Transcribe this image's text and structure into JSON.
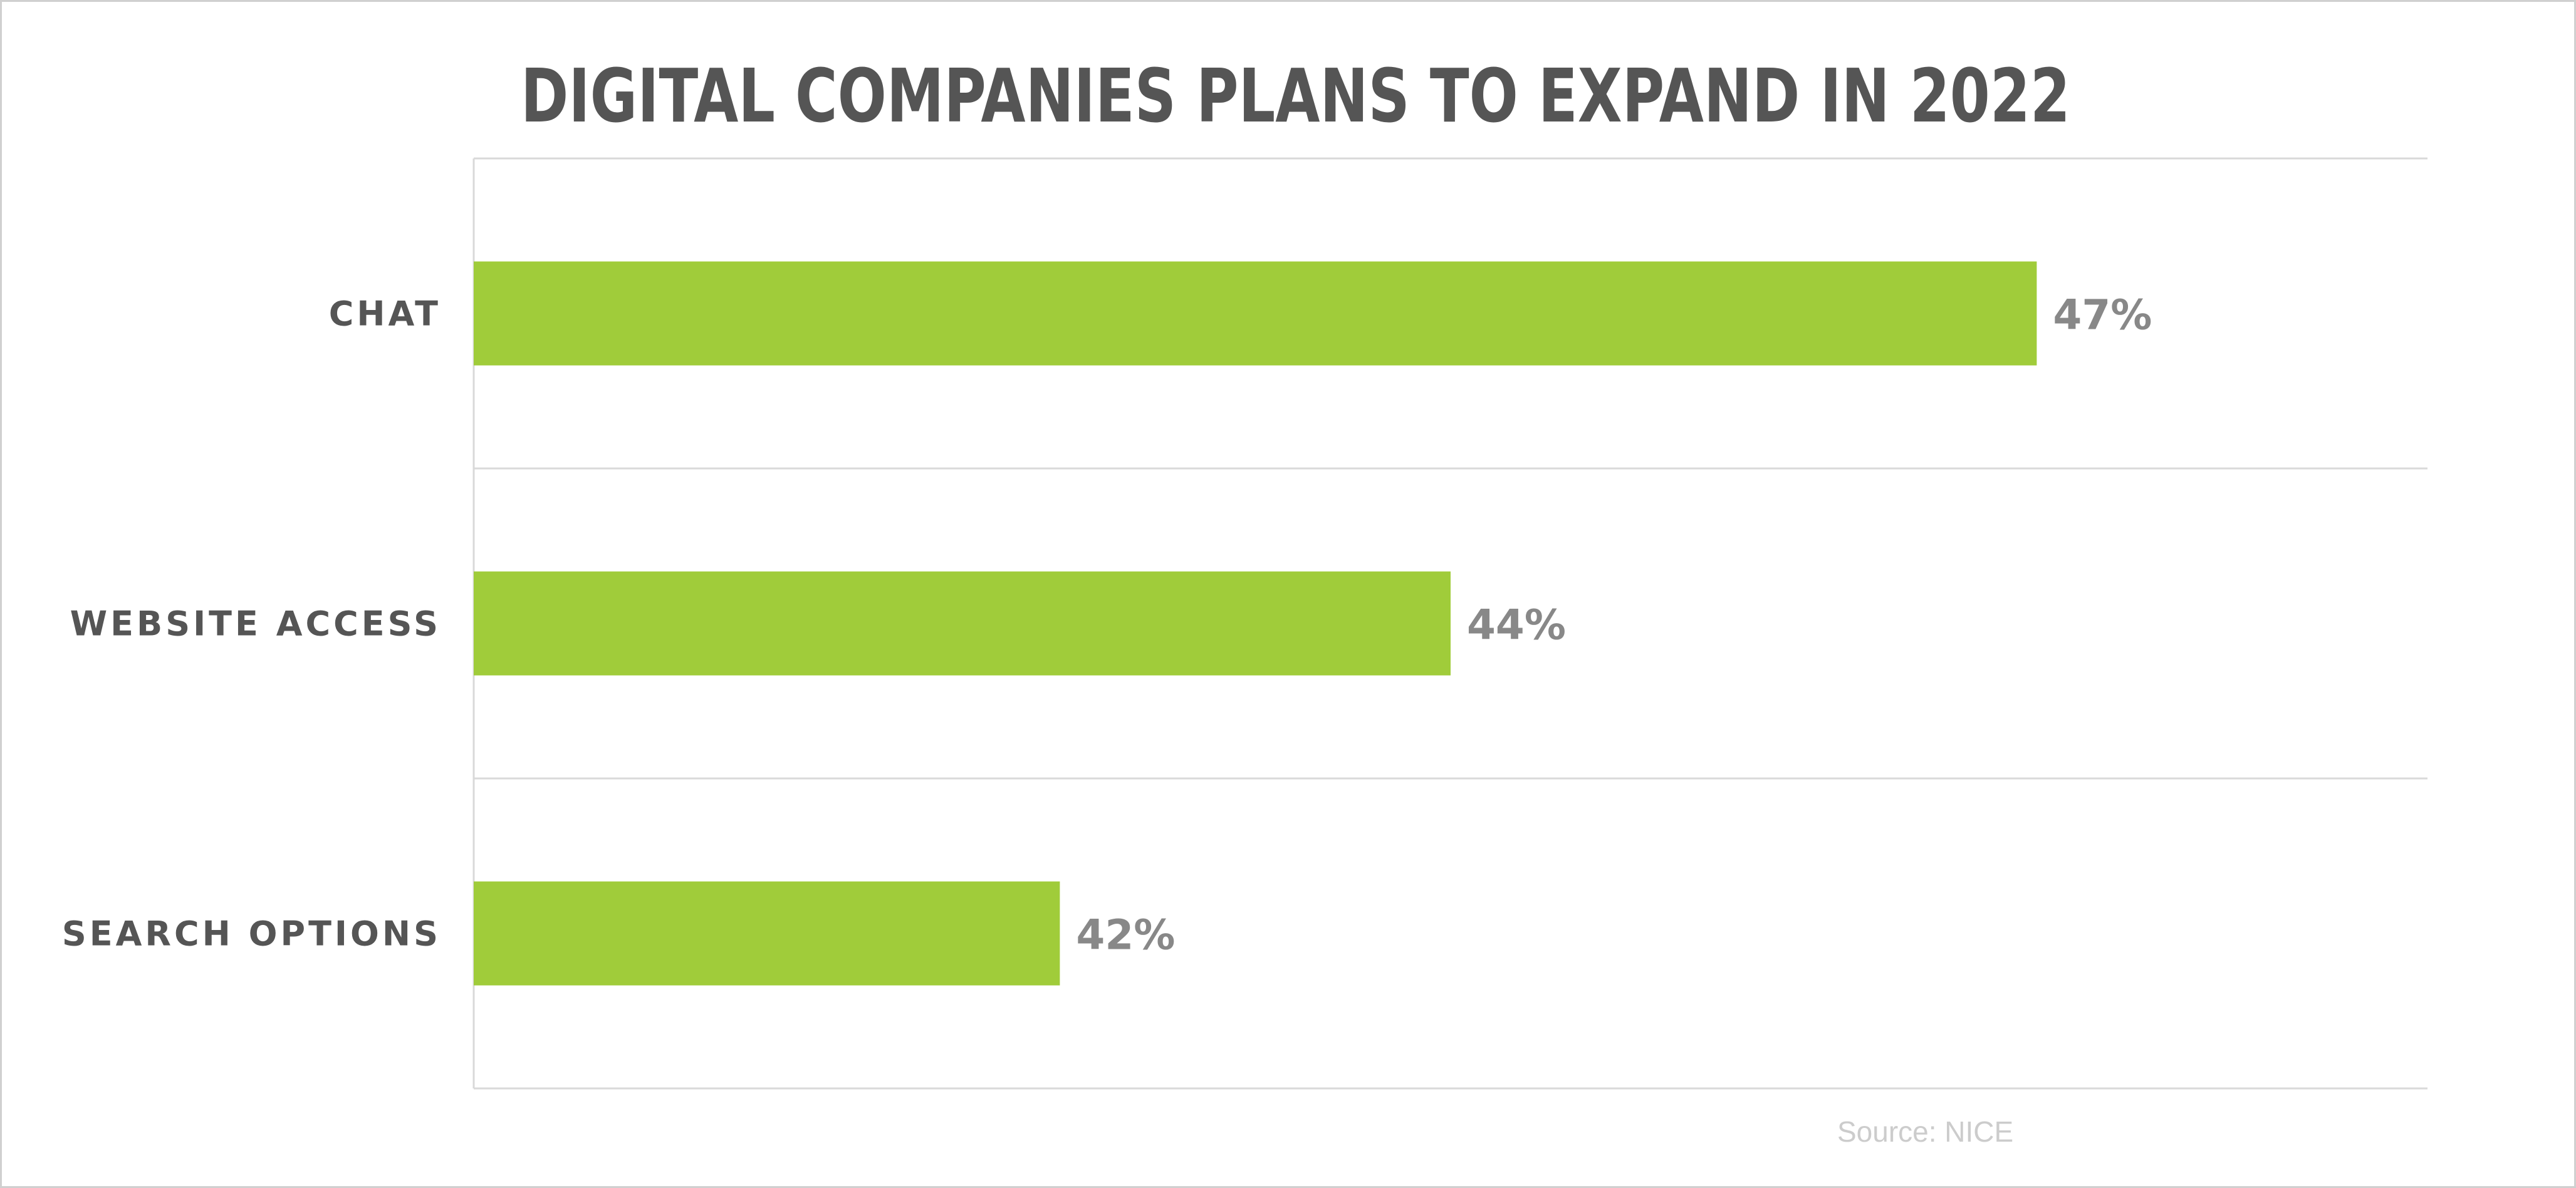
{
  "chart_data": {
    "type": "bar",
    "orientation": "horizontal",
    "title": "DIGITAL COMPANIES PLANS TO EXPAND IN 2022",
    "categories": [
      "CHAT",
      "WEBSITE ACCESS",
      "SEARCH OPTIONS"
    ],
    "values": [
      47,
      44,
      42
    ],
    "value_labels": [
      "47%",
      "44%",
      "42%"
    ],
    "unit": "%",
    "xlim": [
      39,
      49
    ],
    "grid": true,
    "legend": "none",
    "source": "Source: NICE",
    "colors": {
      "bar": "#a0cc3a",
      "title": "#555555",
      "category_text": "#555555",
      "value_text": "#888888",
      "grid": "#d9d9d9",
      "source_text": "#cccccc"
    }
  }
}
